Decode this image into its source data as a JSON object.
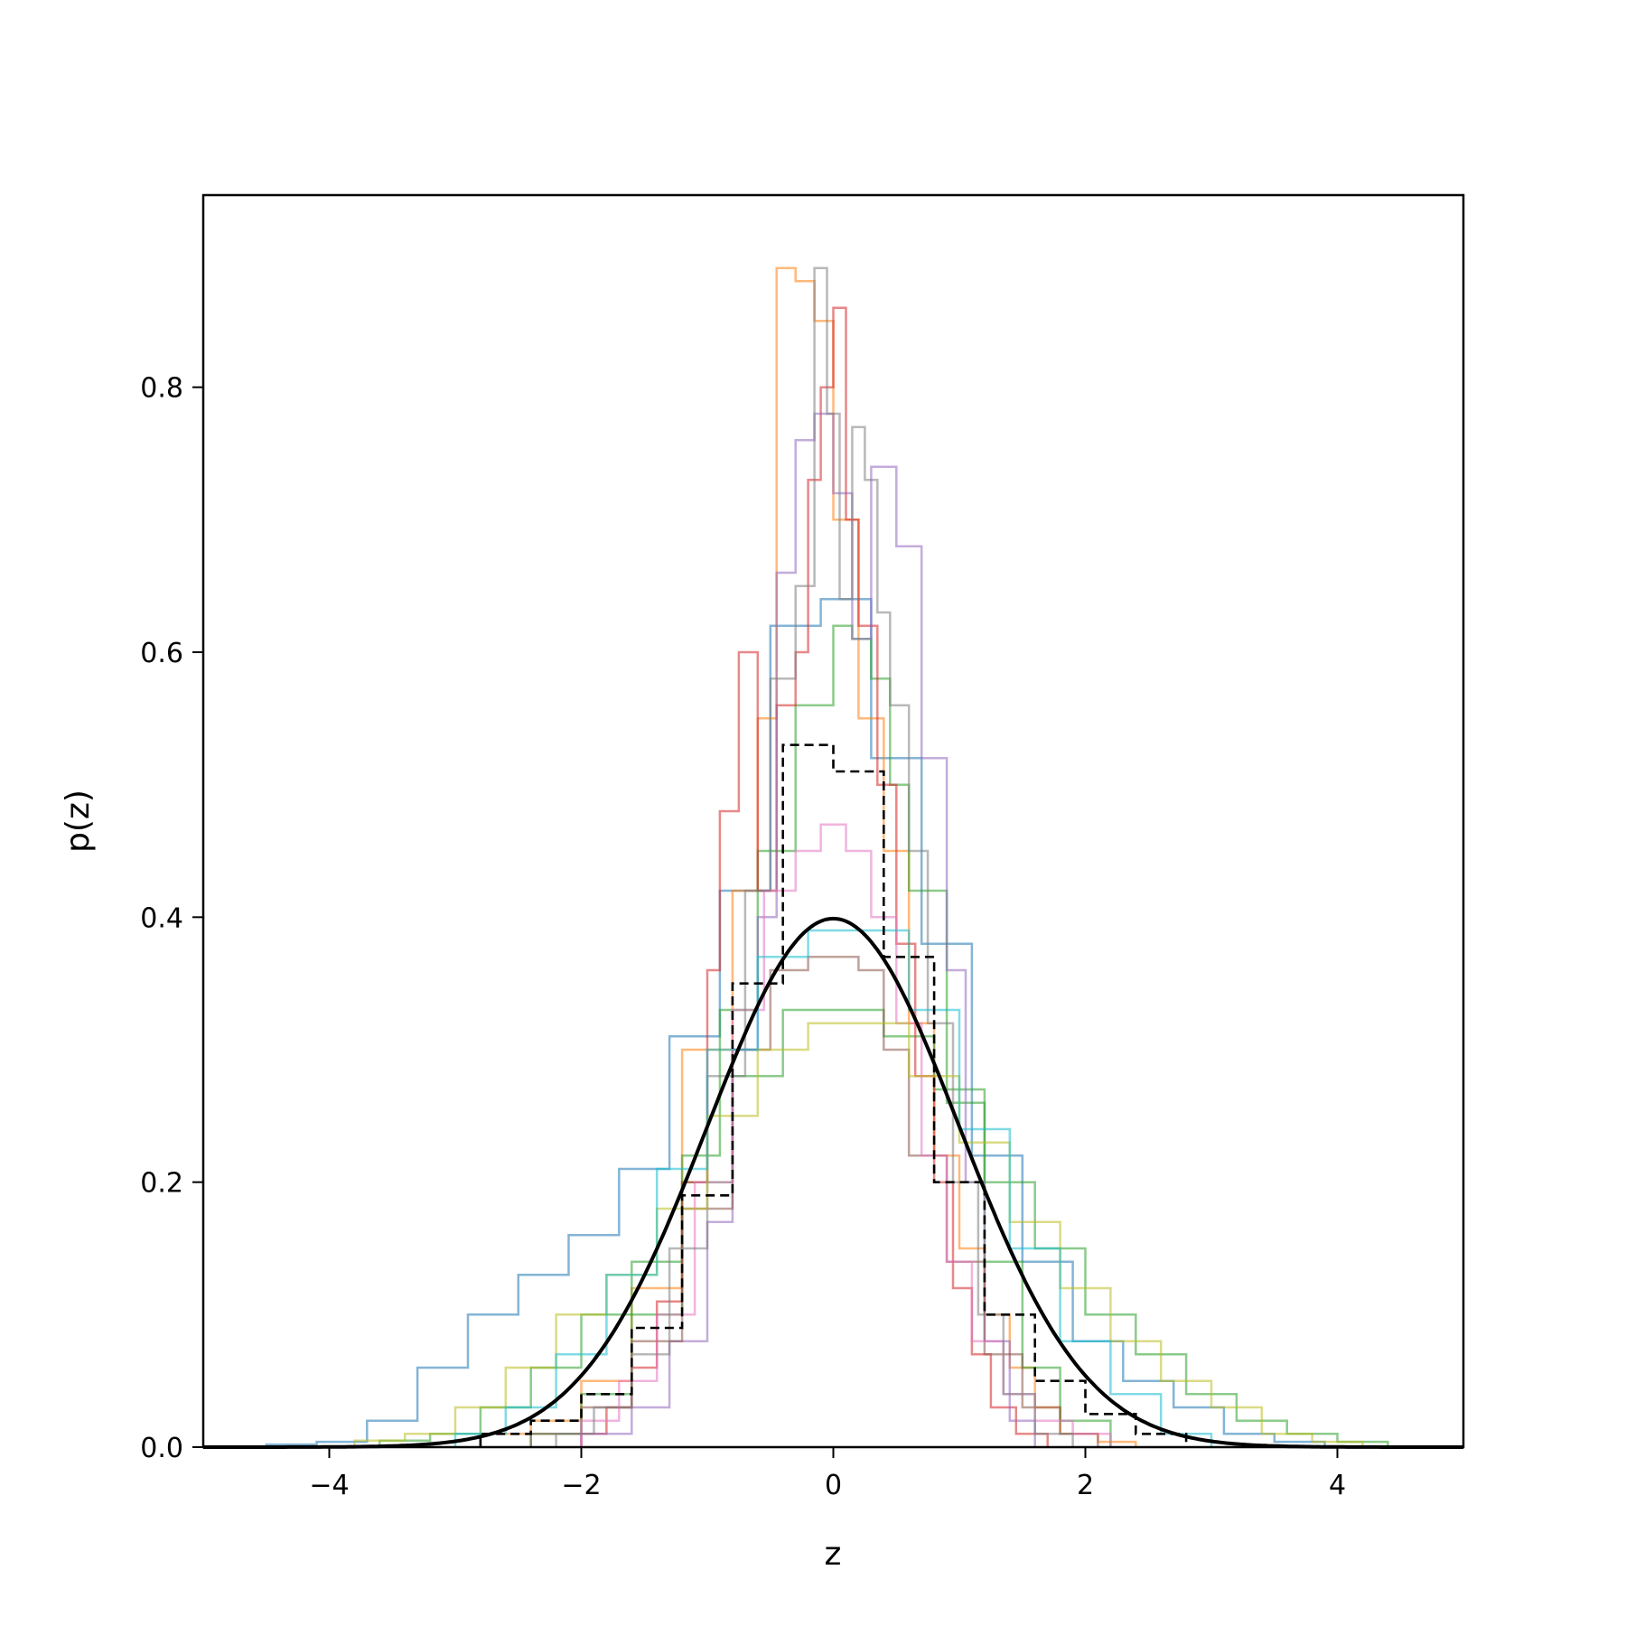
{
  "chart_data": {
    "type": "histogram",
    "xlabel": "z",
    "ylabel": "p(z)",
    "xlim": [
      -5,
      5
    ],
    "ylim": [
      0,
      0.945
    ],
    "xticks": [
      {
        "value": -4,
        "label": "−4"
      },
      {
        "value": -2,
        "label": "−2"
      },
      {
        "value": 0,
        "label": "0"
      },
      {
        "value": 2,
        "label": "2"
      },
      {
        "value": 4,
        "label": "4"
      }
    ],
    "yticks": [
      {
        "value": 0.0,
        "label": "0.0"
      },
      {
        "value": 0.2,
        "label": "0.2"
      },
      {
        "value": 0.4,
        "label": "0.4"
      },
      {
        "value": 0.6,
        "label": "0.6"
      },
      {
        "value": 0.8,
        "label": "0.8"
      }
    ],
    "grid": false,
    "legend": "none",
    "sample_histograms": [
      {
        "color": "#1f77b4",
        "edges": [
          -4.5,
          -4.1,
          -3.7,
          -3.3,
          -2.9,
          -2.5,
          -2.1,
          -1.7,
          -1.3,
          -0.9,
          -0.5,
          -0.1,
          0.3,
          0.7,
          1.1,
          1.5,
          1.9,
          2.3,
          2.7,
          3.1,
          3.5,
          3.9
        ],
        "values": [
          0.002,
          0.004,
          0.02,
          0.06,
          0.1,
          0.13,
          0.16,
          0.21,
          0.31,
          0.42,
          0.62,
          0.64,
          0.52,
          0.38,
          0.22,
          0.14,
          0.08,
          0.05,
          0.03,
          0.01,
          0.004
        ]
      },
      {
        "color": "#ff7f0e",
        "edges": [
          -2.8,
          -2.4,
          -2.0,
          -1.6,
          -1.2,
          -0.8,
          -0.6,
          -0.45,
          -0.3,
          -0.15,
          0.0,
          0.2,
          0.4,
          0.6,
          0.8,
          1.0,
          1.2,
          1.4,
          1.6,
          1.8,
          2.1,
          2.4
        ],
        "values": [
          0.01,
          0.02,
          0.05,
          0.12,
          0.3,
          0.42,
          0.55,
          0.89,
          0.88,
          0.85,
          0.7,
          0.55,
          0.45,
          0.32,
          0.22,
          0.15,
          0.1,
          0.06,
          0.03,
          0.01,
          0.004
        ]
      },
      {
        "color": "#2ca02c",
        "edges": [
          -3.6,
          -3.2,
          -2.8,
          -2.4,
          -2.0,
          -1.6,
          -1.2,
          -0.8,
          -0.4,
          0.0,
          0.4,
          0.8,
          1.2,
          1.6,
          2.0,
          2.4,
          2.8,
          3.2,
          3.6,
          4.0,
          4.4
        ],
        "values": [
          0.005,
          0.01,
          0.03,
          0.06,
          0.1,
          0.14,
          0.2,
          0.28,
          0.33,
          0.33,
          0.31,
          0.27,
          0.2,
          0.15,
          0.1,
          0.07,
          0.04,
          0.02,
          0.01,
          0.004
        ]
      },
      {
        "color": "#2ca02c",
        "edges": [
          -2.4,
          -2.0,
          -1.6,
          -1.2,
          -0.9,
          -0.6,
          -0.3,
          0.0,
          0.15,
          0.3,
          0.45,
          0.6,
          0.9,
          1.2,
          1.5,
          1.8,
          2.2
        ],
        "values": [
          0.01,
          0.04,
          0.1,
          0.22,
          0.33,
          0.45,
          0.56,
          0.62,
          0.61,
          0.58,
          0.5,
          0.42,
          0.26,
          0.14,
          0.06,
          0.02
        ]
      },
      {
        "color": "#d62728",
        "edges": [
          -2.0,
          -1.8,
          -1.6,
          -1.4,
          -1.2,
          -1.0,
          -0.9,
          -0.75,
          -0.6,
          -0.45,
          -0.3,
          -0.2,
          -0.1,
          0.0,
          0.1,
          0.2,
          0.35,
          0.5,
          0.65,
          0.8,
          0.95,
          1.1,
          1.25,
          1.45,
          1.7
        ],
        "values": [
          0.01,
          0.03,
          0.06,
          0.11,
          0.2,
          0.36,
          0.48,
          0.6,
          0.42,
          0.56,
          0.6,
          0.73,
          0.8,
          0.86,
          0.7,
          0.62,
          0.5,
          0.38,
          0.28,
          0.2,
          0.12,
          0.07,
          0.03,
          0.01
        ]
      },
      {
        "color": "#9467bd",
        "edges": [
          -2.0,
          -1.6,
          -1.3,
          -1.0,
          -0.8,
          -0.6,
          -0.45,
          -0.3,
          -0.15,
          0.0,
          0.15,
          0.3,
          0.5,
          0.7,
          0.9,
          1.05,
          1.2,
          1.4,
          1.6
        ],
        "values": [
          0.01,
          0.03,
          0.08,
          0.17,
          0.3,
          0.4,
          0.66,
          0.76,
          0.78,
          0.72,
          0.61,
          0.74,
          0.68,
          0.52,
          0.36,
          0.2,
          0.08,
          0.02
        ]
      },
      {
        "color": "#8c564b",
        "edges": [
          -2.4,
          -2.0,
          -1.6,
          -1.2,
          -0.8,
          -0.5,
          -0.2,
          0.0,
          0.2,
          0.4,
          0.6,
          0.9,
          1.2,
          1.5,
          1.8,
          2.1
        ],
        "values": [
          0.01,
          0.03,
          0.08,
          0.18,
          0.3,
          0.36,
          0.37,
          0.37,
          0.36,
          0.3,
          0.22,
          0.14,
          0.07,
          0.03,
          0.01
        ]
      },
      {
        "color": "#e377c2",
        "edges": [
          -2.0,
          -1.7,
          -1.4,
          -1.1,
          -0.8,
          -0.55,
          -0.3,
          -0.1,
          0.1,
          0.3,
          0.5,
          0.7,
          0.9,
          1.1,
          1.35,
          1.6,
          1.9,
          2.2
        ],
        "values": [
          0.02,
          0.05,
          0.1,
          0.2,
          0.33,
          0.42,
          0.45,
          0.47,
          0.45,
          0.4,
          0.32,
          0.22,
          0.14,
          0.08,
          0.04,
          0.02,
          0.01
        ]
      },
      {
        "color": "#7f7f7f",
        "edges": [
          -2.2,
          -1.9,
          -1.6,
          -1.3,
          -1.0,
          -0.7,
          -0.5,
          -0.3,
          -0.15,
          -0.05,
          0.05,
          0.15,
          0.25,
          0.35,
          0.45,
          0.6,
          0.75,
          0.95,
          1.15,
          1.35,
          1.6,
          1.9
        ],
        "values": [
          0.01,
          0.03,
          0.07,
          0.15,
          0.28,
          0.42,
          0.58,
          0.65,
          0.89,
          0.78,
          0.64,
          0.77,
          0.73,
          0.63,
          0.56,
          0.45,
          0.32,
          0.2,
          0.1,
          0.04,
          0.01
        ]
      },
      {
        "color": "#bcbd22",
        "edges": [
          -3.8,
          -3.4,
          -3.0,
          -2.6,
          -2.2,
          -1.8,
          -1.4,
          -1.0,
          -0.6,
          -0.2,
          0.2,
          0.6,
          1.0,
          1.4,
          1.8,
          2.2,
          2.6,
          3.0,
          3.4,
          3.8,
          4.2
        ],
        "values": [
          0.005,
          0.01,
          0.03,
          0.06,
          0.1,
          0.13,
          0.18,
          0.25,
          0.3,
          0.32,
          0.32,
          0.28,
          0.23,
          0.17,
          0.12,
          0.08,
          0.05,
          0.03,
          0.01,
          0.004
        ]
      },
      {
        "color": "#17becf",
        "edges": [
          -3.0,
          -2.6,
          -2.2,
          -1.8,
          -1.4,
          -1.0,
          -0.6,
          -0.2,
          0.2,
          0.6,
          1.0,
          1.4,
          1.8,
          2.2,
          2.6,
          3.0
        ],
        "values": [
          0.01,
          0.03,
          0.07,
          0.13,
          0.21,
          0.3,
          0.37,
          0.39,
          0.39,
          0.33,
          0.24,
          0.15,
          0.08,
          0.04,
          0.01
        ]
      }
    ],
    "dashed_histogram": {
      "color": "#000000",
      "edges": [
        -2.8,
        -2.4,
        -2.0,
        -1.6,
        -1.2,
        -0.8,
        -0.4,
        0.0,
        0.4,
        0.8,
        1.2,
        1.6,
        2.0,
        2.4,
        2.8
      ],
      "values": [
        0.01,
        0.02,
        0.04,
        0.09,
        0.19,
        0.35,
        0.53,
        0.51,
        0.37,
        0.2,
        0.1,
        0.05,
        0.025,
        0.01
      ]
    },
    "density_curve": {
      "color": "#000000",
      "mean": 0,
      "std": 1,
      "x_range": [
        -5,
        5
      ]
    }
  }
}
